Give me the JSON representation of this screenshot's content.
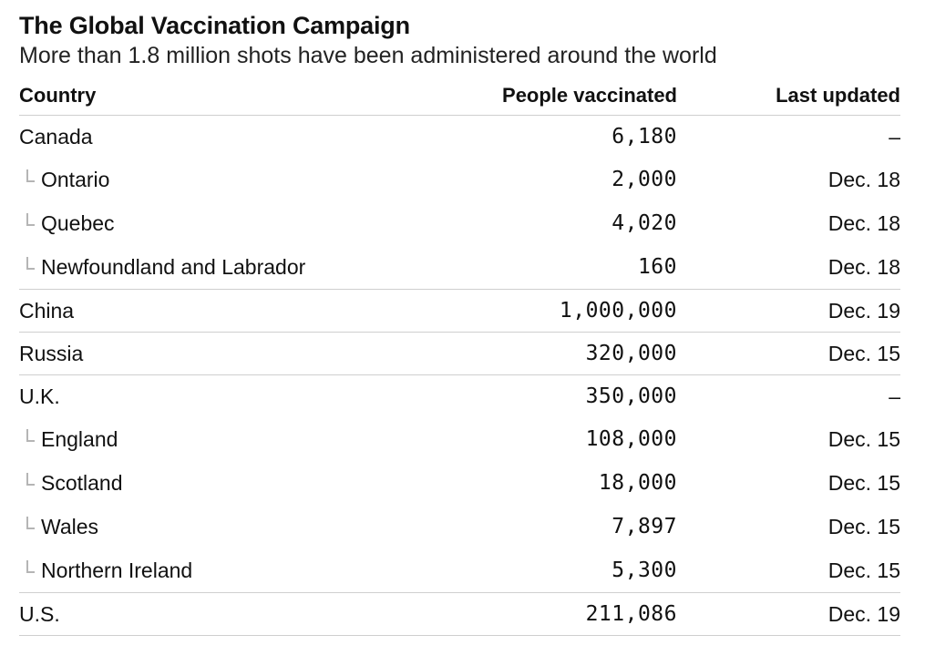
{
  "title": "The Global Vaccination Campaign",
  "subtitle": "More than 1.8 million shots have been administered around the world",
  "columns": {
    "country": "Country",
    "people": "People vaccinated",
    "updated": "Last updated"
  },
  "groups": [
    {
      "country": "Canada",
      "people": "6,180",
      "updated": "–",
      "subs": [
        {
          "name": "Ontario",
          "people": "2,000",
          "updated": "Dec. 18"
        },
        {
          "name": "Quebec",
          "people": "4,020",
          "updated": "Dec. 18"
        },
        {
          "name": "Newfoundland and Labrador",
          "people": "160",
          "updated": "Dec. 18"
        }
      ]
    },
    {
      "country": "China",
      "people": "1,000,000",
      "updated": "Dec. 19",
      "subs": []
    },
    {
      "country": "Russia",
      "people": "320,000",
      "updated": "Dec. 15",
      "subs": []
    },
    {
      "country": "U.K.",
      "people": "350,000",
      "updated": "–",
      "subs": [
        {
          "name": "England",
          "people": "108,000",
          "updated": "Dec. 15"
        },
        {
          "name": "Scotland",
          "people": "18,000",
          "updated": "Dec. 15"
        },
        {
          "name": "Wales",
          "people": "7,897",
          "updated": "Dec. 15"
        },
        {
          "name": "Northern Ireland",
          "people": "5,300",
          "updated": "Dec. 15"
        }
      ]
    },
    {
      "country": "U.S.",
      "people": "211,086",
      "updated": "Dec. 19",
      "subs": []
    }
  ]
}
